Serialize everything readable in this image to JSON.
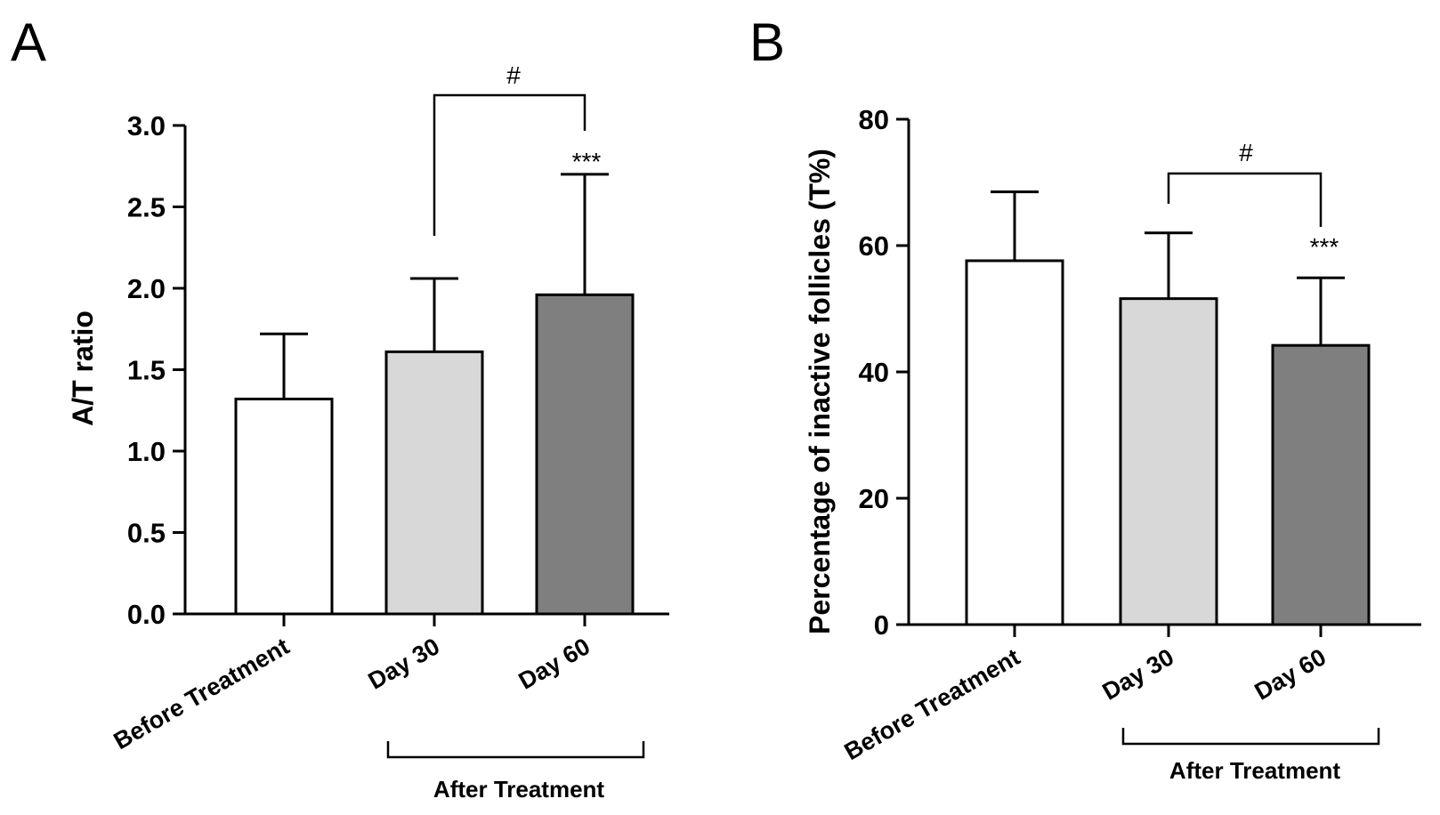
{
  "chart_data": [
    {
      "type": "bar",
      "panel": "A",
      "title": "",
      "xlabel": "",
      "ylabel": "A/T ratio",
      "ylim": [
        0,
        3.0
      ],
      "yticks": [
        "0.0",
        "0.5",
        "1.0",
        "1.5",
        "2.0",
        "2.5",
        "3.0"
      ],
      "tick_values": [
        0,
        0.5,
        1.0,
        1.5,
        2.0,
        2.5,
        3.0
      ],
      "categories": [
        "Before Treatment",
        "Day 30",
        "Day 60"
      ],
      "values": [
        1.32,
        1.61,
        1.96
      ],
      "errors": [
        0.4,
        0.45,
        0.74
      ],
      "colors": [
        "#ffffff",
        "#d8d8d8",
        "#7f7f7f"
      ],
      "group_label": "After Treatment",
      "significance": {
        "bracket": "#",
        "day60": "***"
      }
    },
    {
      "type": "bar",
      "panel": "B",
      "title": "",
      "xlabel": "",
      "ylabel": "Percentage of inactive follicles (T%)",
      "ylim": [
        0,
        80
      ],
      "yticks": [
        "0",
        "20",
        "40",
        "60",
        "80"
      ],
      "tick_values": [
        0,
        20,
        40,
        60,
        80
      ],
      "categories": [
        "Before Treatment",
        "Day 30",
        "Day 60"
      ],
      "values": [
        57.6,
        51.6,
        44.2
      ],
      "errors": [
        10.9,
        10.4,
        10.7
      ],
      "colors": [
        "#ffffff",
        "#d8d8d8",
        "#7f7f7f"
      ],
      "group_label": "After Treatment",
      "significance": {
        "bracket": "#",
        "day60": "***"
      }
    }
  ]
}
